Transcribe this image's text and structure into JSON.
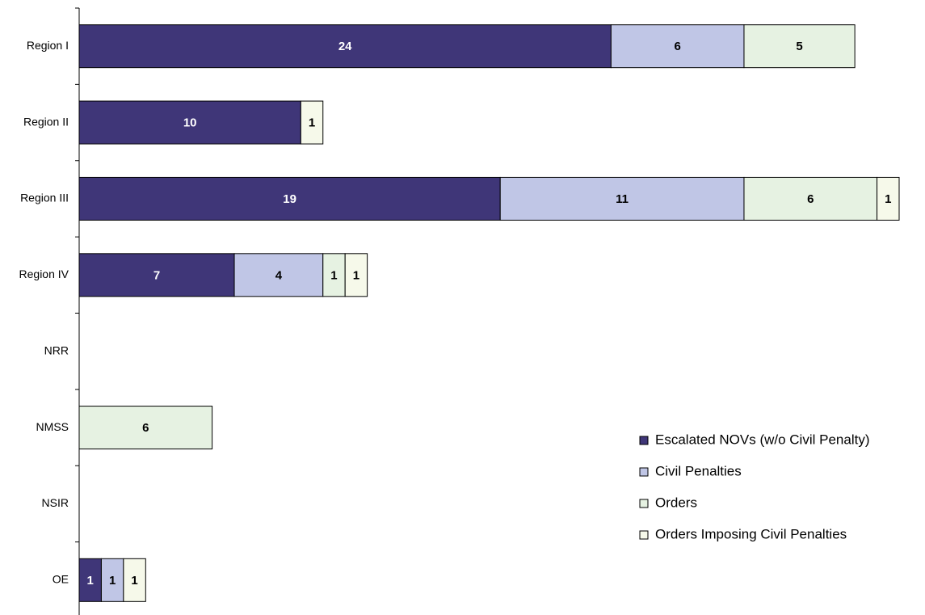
{
  "chart_data": {
    "type": "stacked-barh",
    "categories": [
      "Region I",
      "Region II",
      "Region III",
      "Region IV",
      "NRR",
      "NMSS",
      "NSIR",
      "OE"
    ],
    "series": [
      {
        "name": "Escalated NOVs (w/o Civil Penalty)",
        "color": "#3f3678",
        "values": [
          24,
          10,
          19,
          7,
          null,
          null,
          null,
          1
        ]
      },
      {
        "name": "Civil Penalties",
        "color": "#c0c6e6",
        "values": [
          6,
          null,
          11,
          4,
          null,
          null,
          null,
          1
        ]
      },
      {
        "name": "Orders",
        "color": "#e6f2e2",
        "values": [
          5,
          null,
          6,
          1,
          null,
          6,
          null,
          null
        ]
      },
      {
        "name": "Orders Imposing Civil Penalties",
        "color": "#f6f9ea",
        "values": [
          null,
          1,
          1,
          1,
          null,
          null,
          null,
          1
        ]
      }
    ],
    "xlim": [
      0,
      37
    ],
    "legend": "right"
  }
}
